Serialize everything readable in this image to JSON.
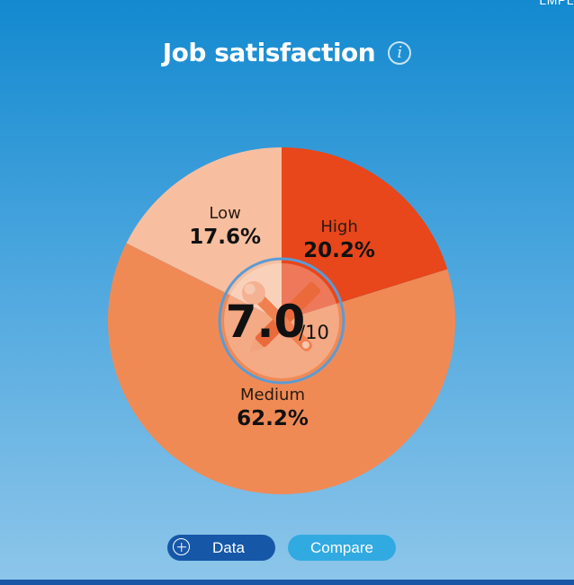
{
  "corner_text": "LMPL",
  "header": {
    "title": "Job satisfaction",
    "info_glyph": "i"
  },
  "chart_data": {
    "type": "pie",
    "title": "Job satisfaction",
    "slices": [
      {
        "label": "High",
        "value": 20.2,
        "display": "20.2%",
        "color": "#e8461b",
        "label_color": "#2a1a12"
      },
      {
        "label": "Medium",
        "value": 62.2,
        "display": "62.2%",
        "color": "#f08a55",
        "label_color": "#2a1a12"
      },
      {
        "label": "Low",
        "value": 17.6,
        "display": "17.6%",
        "color": "#f7bfa0",
        "label_color": "#2a1a12"
      }
    ],
    "center": {
      "score": "7.0",
      "scale": "/10",
      "icon": "tools-icon"
    }
  },
  "buttons": {
    "data_label": "Data",
    "compare_label": "Compare"
  }
}
